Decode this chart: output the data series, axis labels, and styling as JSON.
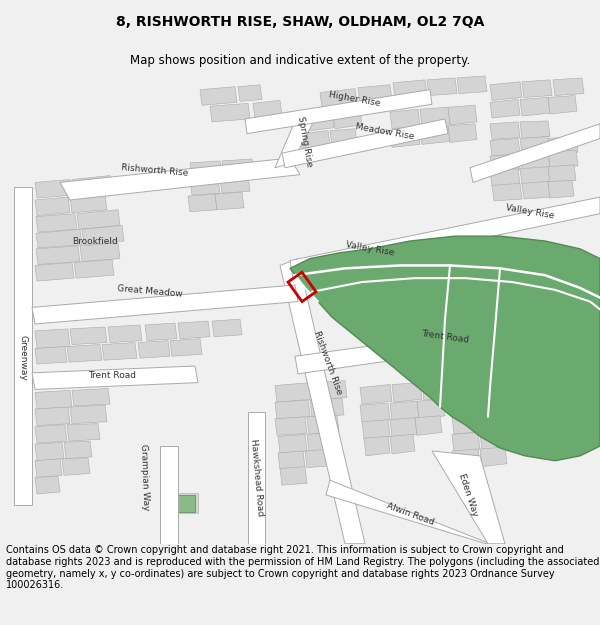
{
  "title": "8, RISHWORTH RISE, SHAW, OLDHAM, OL2 7QA",
  "subtitle": "Map shows position and indicative extent of the property.",
  "footer": "Contains OS data © Crown copyright and database right 2021. This information is subject to Crown copyright and database rights 2023 and is reproduced with the permission of HM Land Registry. The polygons (including the associated geometry, namely x, y co-ordinates) are subject to Crown copyright and database rights 2023 Ordnance Survey 100026316.",
  "bg_color": "#f0f0f0",
  "map_bg": "#ffffff",
  "building_color": "#d4d4d4",
  "building_edge": "#aaaaaa",
  "road_color": "#ffffff",
  "road_edge": "#aaaaaa",
  "green_color": "#6aaa6e",
  "green_edge": "#558855",
  "green_path_color": "#ffffff",
  "highlight_color": "#cc0000",
  "title_fontsize": 10,
  "subtitle_fontsize": 8.5,
  "footer_fontsize": 7,
  "label_fontsize": 6.5,
  "figsize": [
    6.0,
    6.25
  ],
  "dpi": 100
}
